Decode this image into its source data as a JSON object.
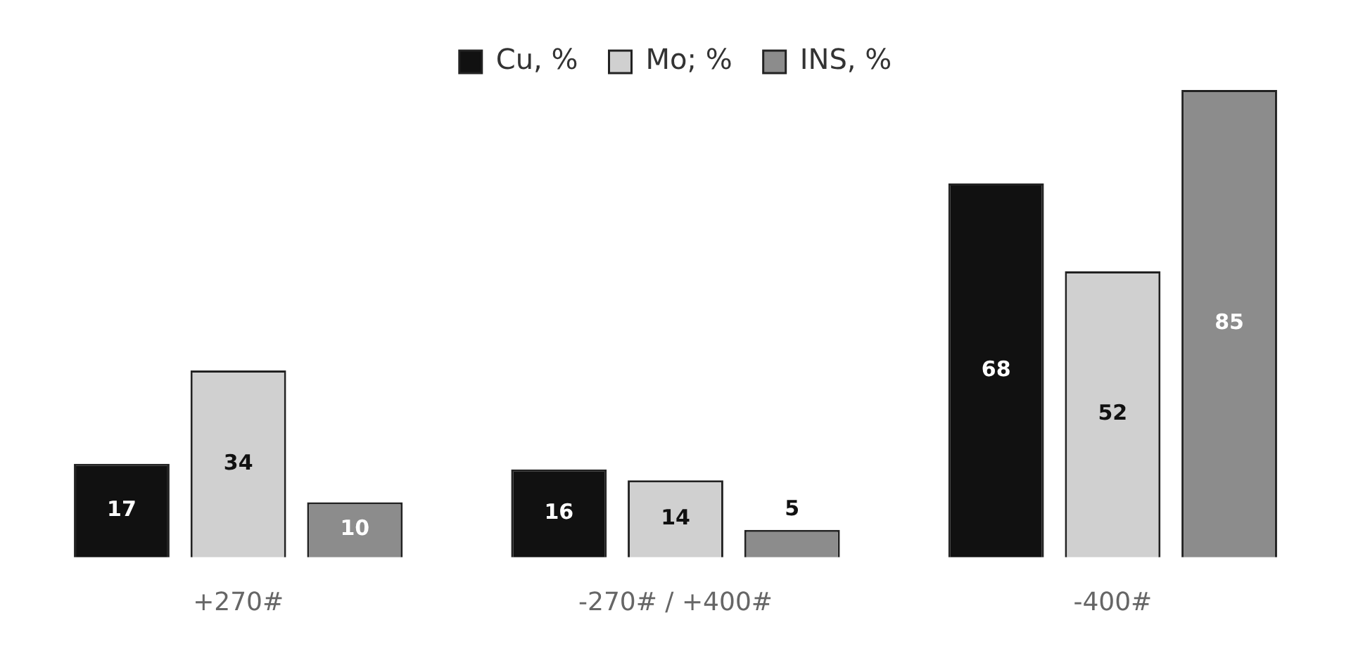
{
  "chart_data": {
    "type": "bar",
    "categories": [
      "+270#",
      "-270# / +400#",
      "-400#"
    ],
    "series": [
      {
        "name": "Cu, %",
        "color": "#111111",
        "values": [
          17,
          16,
          68
        ]
      },
      {
        "name": "Mo; %",
        "color": "#d0d0d0",
        "values": [
          34,
          14,
          52
        ]
      },
      {
        "name": "INS, %",
        "color": "#8c8c8c",
        "values": [
          10,
          5,
          85
        ]
      }
    ],
    "data_labels": true,
    "legend": "top",
    "grid": false
  }
}
